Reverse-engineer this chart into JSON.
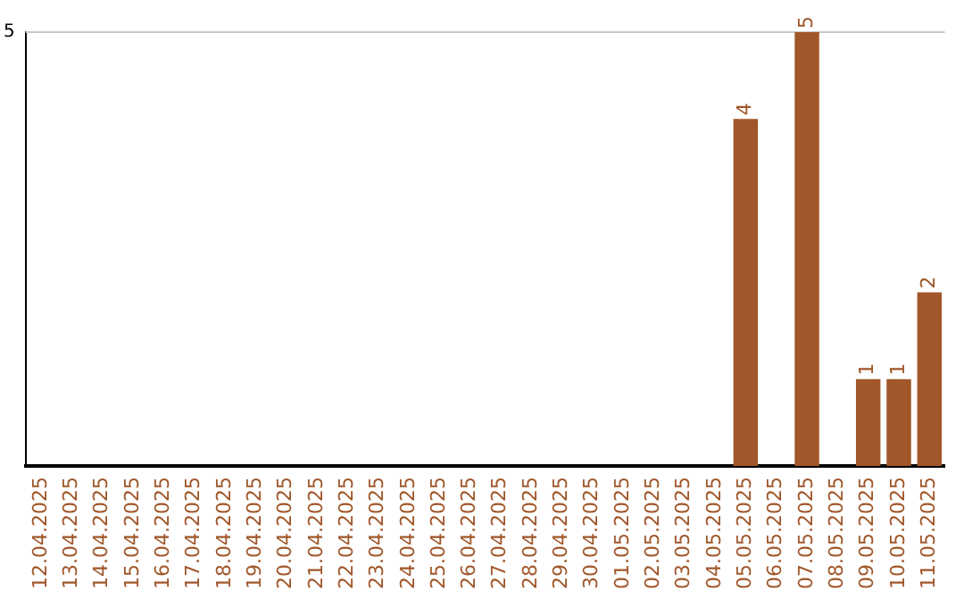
{
  "chart_data": {
    "type": "bar",
    "categories": [
      "12.04.2025",
      "13.04.2025",
      "14.04.2025",
      "15.04.2025",
      "16.04.2025",
      "17.04.2025",
      "18.04.2025",
      "19.04.2025",
      "20.04.2025",
      "21.04.2025",
      "22.04.2025",
      "23.04.2025",
      "24.04.2025",
      "25.04.2025",
      "26.04.2025",
      "27.04.2025",
      "28.04.2025",
      "29.04.2025",
      "30.04.2025",
      "01.05.2025",
      "02.05.2025",
      "03.05.2025",
      "04.05.2025",
      "05.05.2025",
      "06.05.2025",
      "07.05.2025",
      "08.05.2025",
      "09.05.2025",
      "10.05.2025",
      "11.05.2025"
    ],
    "values": [
      null,
      null,
      null,
      null,
      null,
      null,
      null,
      null,
      null,
      null,
      null,
      null,
      null,
      null,
      null,
      null,
      null,
      null,
      null,
      null,
      null,
      null,
      null,
      4,
      null,
      5,
      null,
      1,
      1,
      2
    ],
    "data_labels": true,
    "color": "#a0572a",
    "ylim": [
      0,
      5
    ],
    "yticks": [
      5
    ],
    "ref_lines": [
      {
        "axis": "y",
        "value": 5,
        "color": "#c8c8c8"
      }
    ],
    "legend": false
  }
}
